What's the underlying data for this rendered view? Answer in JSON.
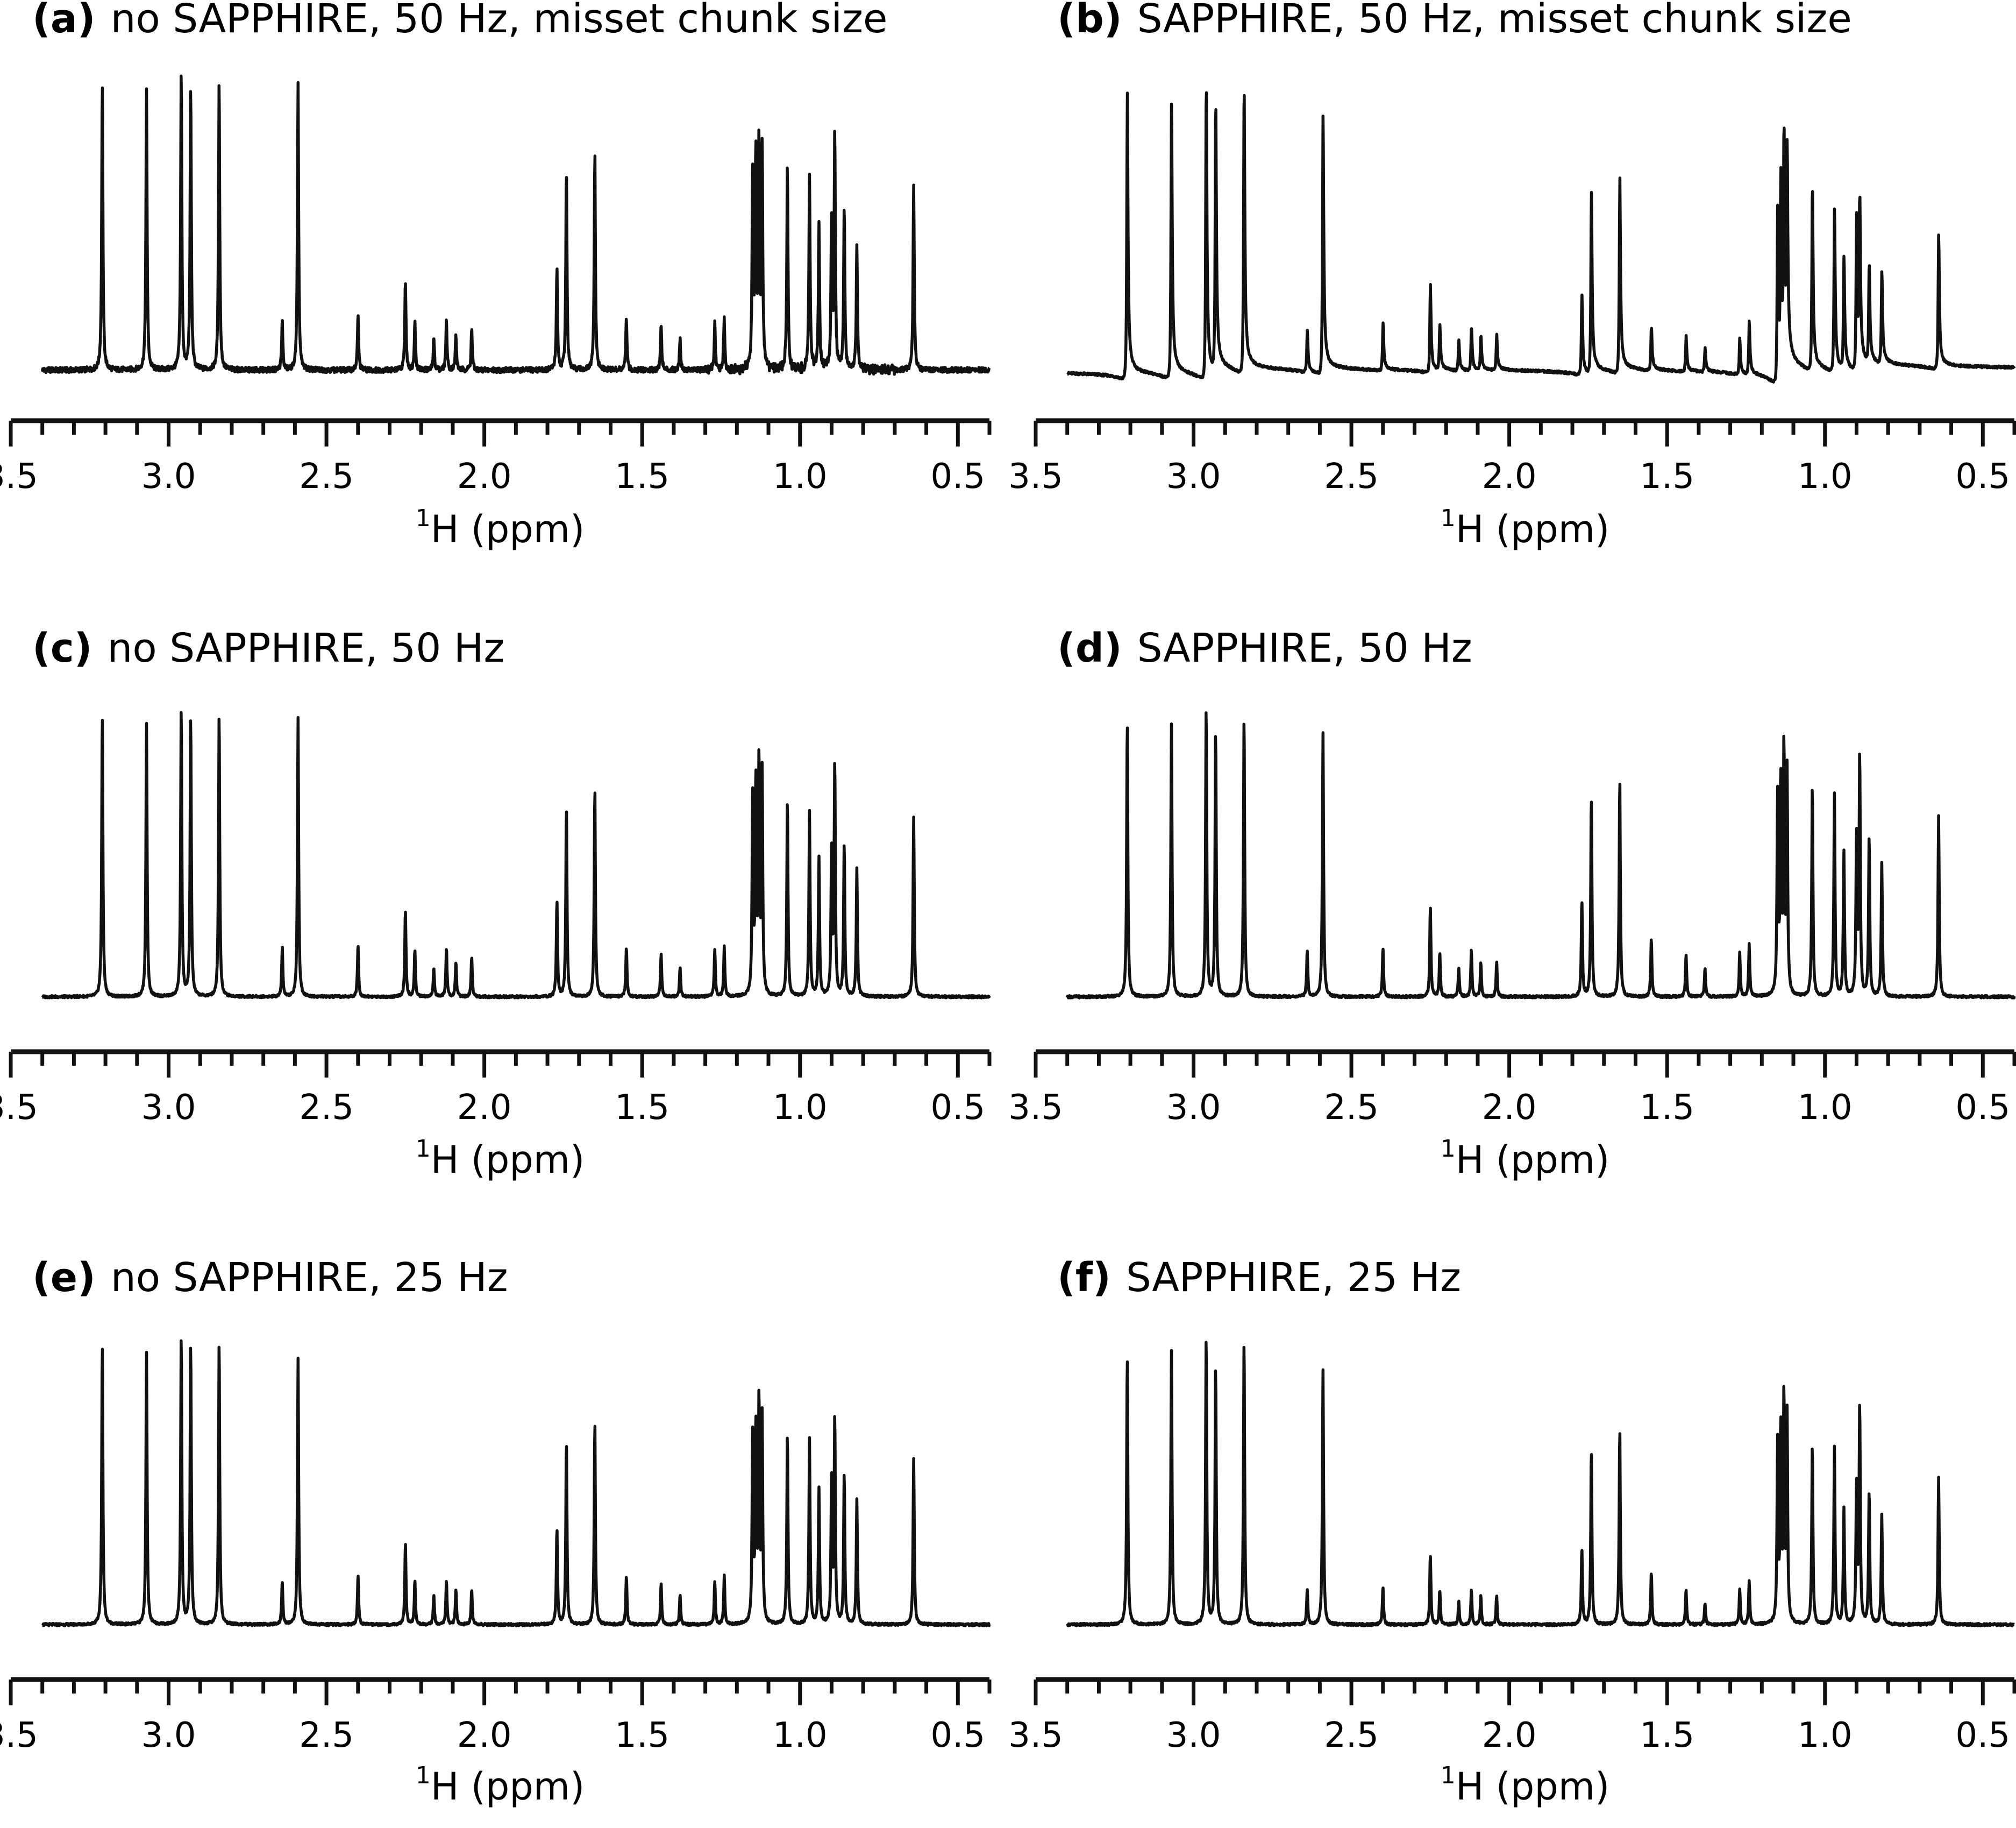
{
  "figure": {
    "panels": [
      {
        "tag": "(a)",
        "title": "no SAPPHIRE, 50 Hz, misset chunk size"
      },
      {
        "tag": "(b)",
        "title": "SAPPHIRE, 50 Hz, misset chunk size"
      },
      {
        "tag": "(c)",
        "title": "no SAPPHIRE, 50 Hz"
      },
      {
        "tag": "(d)",
        "title": "SAPPHIRE, 50 Hz"
      },
      {
        "tag": "(e)",
        "title": "no SAPPHIRE, 25 Hz"
      },
      {
        "tag": "(f)",
        "title": "SAPPHIRE, 25 Hz"
      }
    ],
    "xlabel_sup": "1",
    "xlabel": "H (ppm)",
    "xticks": [
      "3.5",
      "3.0",
      "2.5",
      "2.0",
      "1.5",
      "1.0",
      "0.5"
    ]
  },
  "chart_data": [
    {
      "panel": "(a)",
      "type": "line",
      "title": "no SAPPHIRE, 50 Hz, misset chunk size",
      "xlabel": "1H (ppm)",
      "xlim": [
        3.5,
        0.4
      ],
      "x_reversed": true,
      "major_ticks": [
        3.5,
        3.0,
        2.5,
        2.0,
        1.5,
        1.0,
        0.5
      ],
      "minor_tick_step": 0.1,
      "peaks_ppm": [
        3.21,
        3.07,
        2.96,
        2.93,
        2.84,
        2.64,
        2.59,
        2.4,
        2.25,
        2.22,
        2.16,
        2.12,
        2.09,
        2.04,
        1.77,
        1.74,
        1.65,
        1.55,
        1.44,
        1.38,
        1.27,
        1.24,
        1.15,
        1.14,
        1.13,
        1.12,
        1.04,
        0.97,
        0.94,
        0.9,
        0.89,
        0.86,
        0.82,
        0.64
      ],
      "peak_heights": [
        1.0,
        0.96,
        1.04,
        0.98,
        1.0,
        0.17,
        0.99,
        0.19,
        0.31,
        0.17,
        0.11,
        0.17,
        0.12,
        0.14,
        0.35,
        0.69,
        0.75,
        0.18,
        0.16,
        0.11,
        0.15,
        0.18,
        0.67,
        0.73,
        0.77,
        0.76,
        0.7,
        0.67,
        0.5,
        0.52,
        0.8,
        0.55,
        0.43,
        0.63
      ],
      "phase_distortion": "slight"
    },
    {
      "panel": "(b)",
      "type": "line",
      "title": "SAPPHIRE, 50 Hz, misset chunk size",
      "xlabel": "1H (ppm)",
      "xlim": [
        3.5,
        0.4
      ],
      "x_reversed": true,
      "major_ticks": [
        3.5,
        3.0,
        2.5,
        2.0,
        1.5,
        1.0,
        0.5
      ],
      "minor_tick_step": 0.1,
      "peaks_ppm": [
        3.21,
        3.07,
        2.96,
        2.93,
        2.84,
        2.64,
        2.59,
        2.4,
        2.25,
        2.22,
        2.16,
        2.12,
        2.09,
        2.04,
        1.77,
        1.74,
        1.65,
        1.55,
        1.44,
        1.38,
        1.27,
        1.24,
        1.15,
        1.14,
        1.13,
        1.12,
        1.04,
        0.97,
        0.94,
        0.9,
        0.89,
        0.86,
        0.82,
        0.64
      ],
      "peak_heights": [
        0.95,
        0.93,
        1.0,
        0.9,
        0.96,
        0.14,
        0.87,
        0.16,
        0.29,
        0.15,
        0.1,
        0.15,
        0.12,
        0.12,
        0.27,
        0.6,
        0.65,
        0.15,
        0.12,
        0.08,
        0.12,
        0.18,
        0.6,
        0.65,
        0.78,
        0.68,
        0.62,
        0.55,
        0.38,
        0.52,
        0.55,
        0.33,
        0.31,
        0.45
      ],
      "phase_distortion": "strong dispersive"
    },
    {
      "panel": "(c)",
      "type": "line",
      "title": "no SAPPHIRE, 50 Hz",
      "xlabel": "1H (ppm)",
      "xlim": [
        3.5,
        0.4
      ],
      "x_reversed": true,
      "major_ticks": [
        3.5,
        3.0,
        2.5,
        2.0,
        1.5,
        1.0,
        0.5
      ],
      "minor_tick_step": 0.1,
      "peaks_ppm": [
        3.21,
        3.07,
        2.96,
        2.93,
        2.84,
        2.64,
        2.59,
        2.4,
        2.25,
        2.22,
        2.16,
        2.12,
        2.09,
        2.04,
        1.77,
        1.74,
        1.65,
        1.55,
        1.44,
        1.38,
        1.27,
        1.24,
        1.15,
        1.14,
        1.13,
        1.12,
        1.04,
        0.97,
        0.94,
        0.9,
        0.89,
        0.86,
        0.82,
        0.64
      ],
      "peak_heights": [
        0.98,
        0.94,
        1.0,
        0.97,
        0.98,
        0.17,
        0.96,
        0.18,
        0.3,
        0.16,
        0.1,
        0.17,
        0.12,
        0.14,
        0.33,
        0.65,
        0.72,
        0.17,
        0.15,
        0.1,
        0.16,
        0.17,
        0.67,
        0.72,
        0.8,
        0.76,
        0.68,
        0.64,
        0.48,
        0.5,
        0.8,
        0.53,
        0.44,
        0.62
      ],
      "phase_distortion": "none"
    },
    {
      "panel": "(d)",
      "type": "line",
      "title": "SAPPHIRE, 50 Hz",
      "xlabel": "1H (ppm)",
      "xlim": [
        3.5,
        0.4
      ],
      "x_reversed": true,
      "major_ticks": [
        3.5,
        3.0,
        2.5,
        2.0,
        1.5,
        1.0,
        0.5
      ],
      "minor_tick_step": 0.1,
      "peaks_ppm": [
        3.21,
        3.07,
        2.96,
        2.93,
        2.84,
        2.64,
        2.59,
        2.4,
        2.25,
        2.22,
        2.16,
        2.12,
        2.09,
        2.04,
        1.77,
        1.74,
        1.65,
        1.55,
        1.44,
        1.38,
        1.27,
        1.24,
        1.15,
        1.14,
        1.13,
        1.12,
        1.04,
        0.97,
        0.94,
        0.9,
        0.89,
        0.86,
        0.82,
        0.64
      ],
      "peak_heights": [
        0.95,
        0.94,
        1.0,
        0.92,
        0.97,
        0.16,
        0.91,
        0.17,
        0.31,
        0.15,
        0.1,
        0.16,
        0.12,
        0.12,
        0.33,
        0.69,
        0.75,
        0.2,
        0.15,
        0.1,
        0.15,
        0.18,
        0.68,
        0.73,
        0.84,
        0.76,
        0.73,
        0.7,
        0.5,
        0.55,
        0.83,
        0.55,
        0.46,
        0.62
      ],
      "phase_distortion": "none"
    },
    {
      "panel": "(e)",
      "type": "line",
      "title": "no SAPPHIRE, 25 Hz",
      "xlabel": "1H (ppm)",
      "xlim": [
        3.5,
        0.4
      ],
      "x_reversed": true,
      "major_ticks": [
        3.5,
        3.0,
        2.5,
        2.0,
        1.5,
        1.0,
        0.5
      ],
      "minor_tick_step": 0.1,
      "peaks_ppm": [
        3.21,
        3.07,
        2.96,
        2.93,
        2.84,
        2.64,
        2.59,
        2.4,
        2.25,
        2.22,
        2.16,
        2.12,
        2.09,
        2.04,
        1.77,
        1.74,
        1.65,
        1.55,
        1.44,
        1.38,
        1.27,
        1.24,
        1.15,
        1.14,
        1.13,
        1.12,
        1.04,
        0.97,
        0.94,
        0.9,
        0.89,
        0.86,
        0.82,
        0.64
      ],
      "peak_heights": [
        0.98,
        0.94,
        1.0,
        0.97,
        0.98,
        0.15,
        0.92,
        0.17,
        0.28,
        0.15,
        0.1,
        0.15,
        0.12,
        0.12,
        0.33,
        0.63,
        0.7,
        0.17,
        0.14,
        0.1,
        0.15,
        0.17,
        0.64,
        0.66,
        0.76,
        0.7,
        0.66,
        0.64,
        0.47,
        0.5,
        0.71,
        0.52,
        0.43,
        0.57
      ],
      "phase_distortion": "none"
    },
    {
      "panel": "(f)",
      "type": "line",
      "title": "SAPPHIRE, 25 Hz",
      "xlabel": "1H (ppm)",
      "xlim": [
        3.5,
        0.4
      ],
      "x_reversed": true,
      "major_ticks": [
        3.5,
        3.0,
        2.5,
        2.0,
        1.5,
        1.0,
        0.5
      ],
      "minor_tick_step": 0.1,
      "peaks_ppm": [
        3.21,
        3.07,
        2.96,
        2.93,
        2.84,
        2.64,
        2.59,
        2.4,
        2.25,
        2.22,
        2.16,
        2.12,
        2.09,
        2.04,
        1.77,
        1.74,
        1.65,
        1.55,
        1.44,
        1.38,
        1.27,
        1.24,
        1.15,
        1.14,
        1.13,
        1.12,
        1.04,
        0.97,
        0.94,
        0.9,
        0.89,
        0.86,
        0.82,
        0.64
      ],
      "peak_heights": [
        0.93,
        0.94,
        1.0,
        0.89,
        0.98,
        0.12,
        0.88,
        0.13,
        0.24,
        0.12,
        0.08,
        0.12,
        0.1,
        0.1,
        0.26,
        0.6,
        0.68,
        0.18,
        0.12,
        0.07,
        0.12,
        0.15,
        0.61,
        0.66,
        0.77,
        0.71,
        0.62,
        0.61,
        0.4,
        0.48,
        0.75,
        0.46,
        0.38,
        0.51
      ],
      "phase_distortion": "none"
    }
  ]
}
